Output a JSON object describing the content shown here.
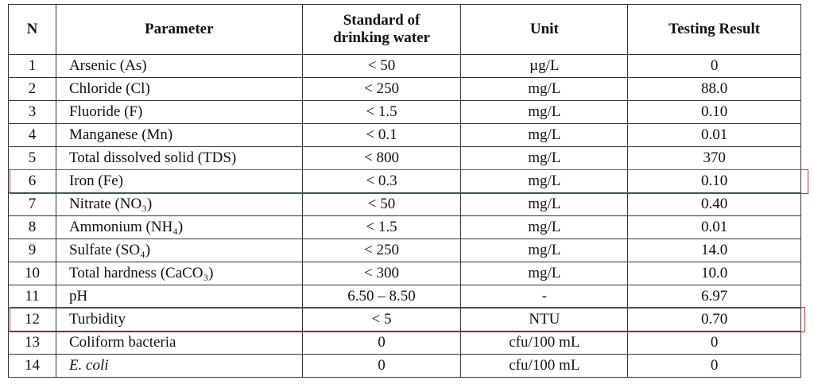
{
  "table": {
    "header": [
      "N",
      "Parameter",
      "Standard of drinking water",
      "Unit",
      "Testing Result"
    ],
    "rows": [
      [
        "1",
        "Arsenic (As)",
        "< 50",
        "µg/L",
        "0"
      ],
      [
        "2",
        "Chloride (Cl)",
        "< 250",
        "mg/L",
        "88.0"
      ],
      [
        "3",
        "Fluoride (F)",
        "< 1.5",
        "mg/L",
        "0.10"
      ],
      [
        "4",
        "Manganese (Mn)",
        "< 0.1",
        "mg/L",
        "0.01"
      ],
      [
        "5",
        "Total dissolved solid (TDS)",
        "< 800",
        "mg/L",
        "370"
      ],
      [
        "6",
        "Iron (Fe)",
        "< 0.3",
        "mg/L",
        "0.10"
      ],
      [
        "7",
        "Nitrate (NO₃)",
        "< 50",
        "mg/L",
        "0.40"
      ],
      [
        "8",
        "Ammonium (NH₄)",
        "< 1.5",
        "mg/L",
        "0.01"
      ],
      [
        "9",
        "Sulfate (SO₄)",
        "< 250",
        "mg/L",
        "14.0"
      ],
      [
        "10",
        "Total hardness (CaCO₃)",
        "< 300",
        "mg/L",
        "10.0"
      ],
      [
        "11",
        "pH",
        "6.50 – 8.50",
        "-",
        "6.97"
      ],
      [
        "12",
        "Turbidity",
        "< 5",
        "NTU",
        "0.70"
      ],
      [
        "13",
        "Coliform bacteria",
        "0",
        "cfu/100 mL",
        "0"
      ],
      [
        "14",
        "E. coli",
        "0",
        "cfu/100 mL",
        "0"
      ]
    ]
  }
}
